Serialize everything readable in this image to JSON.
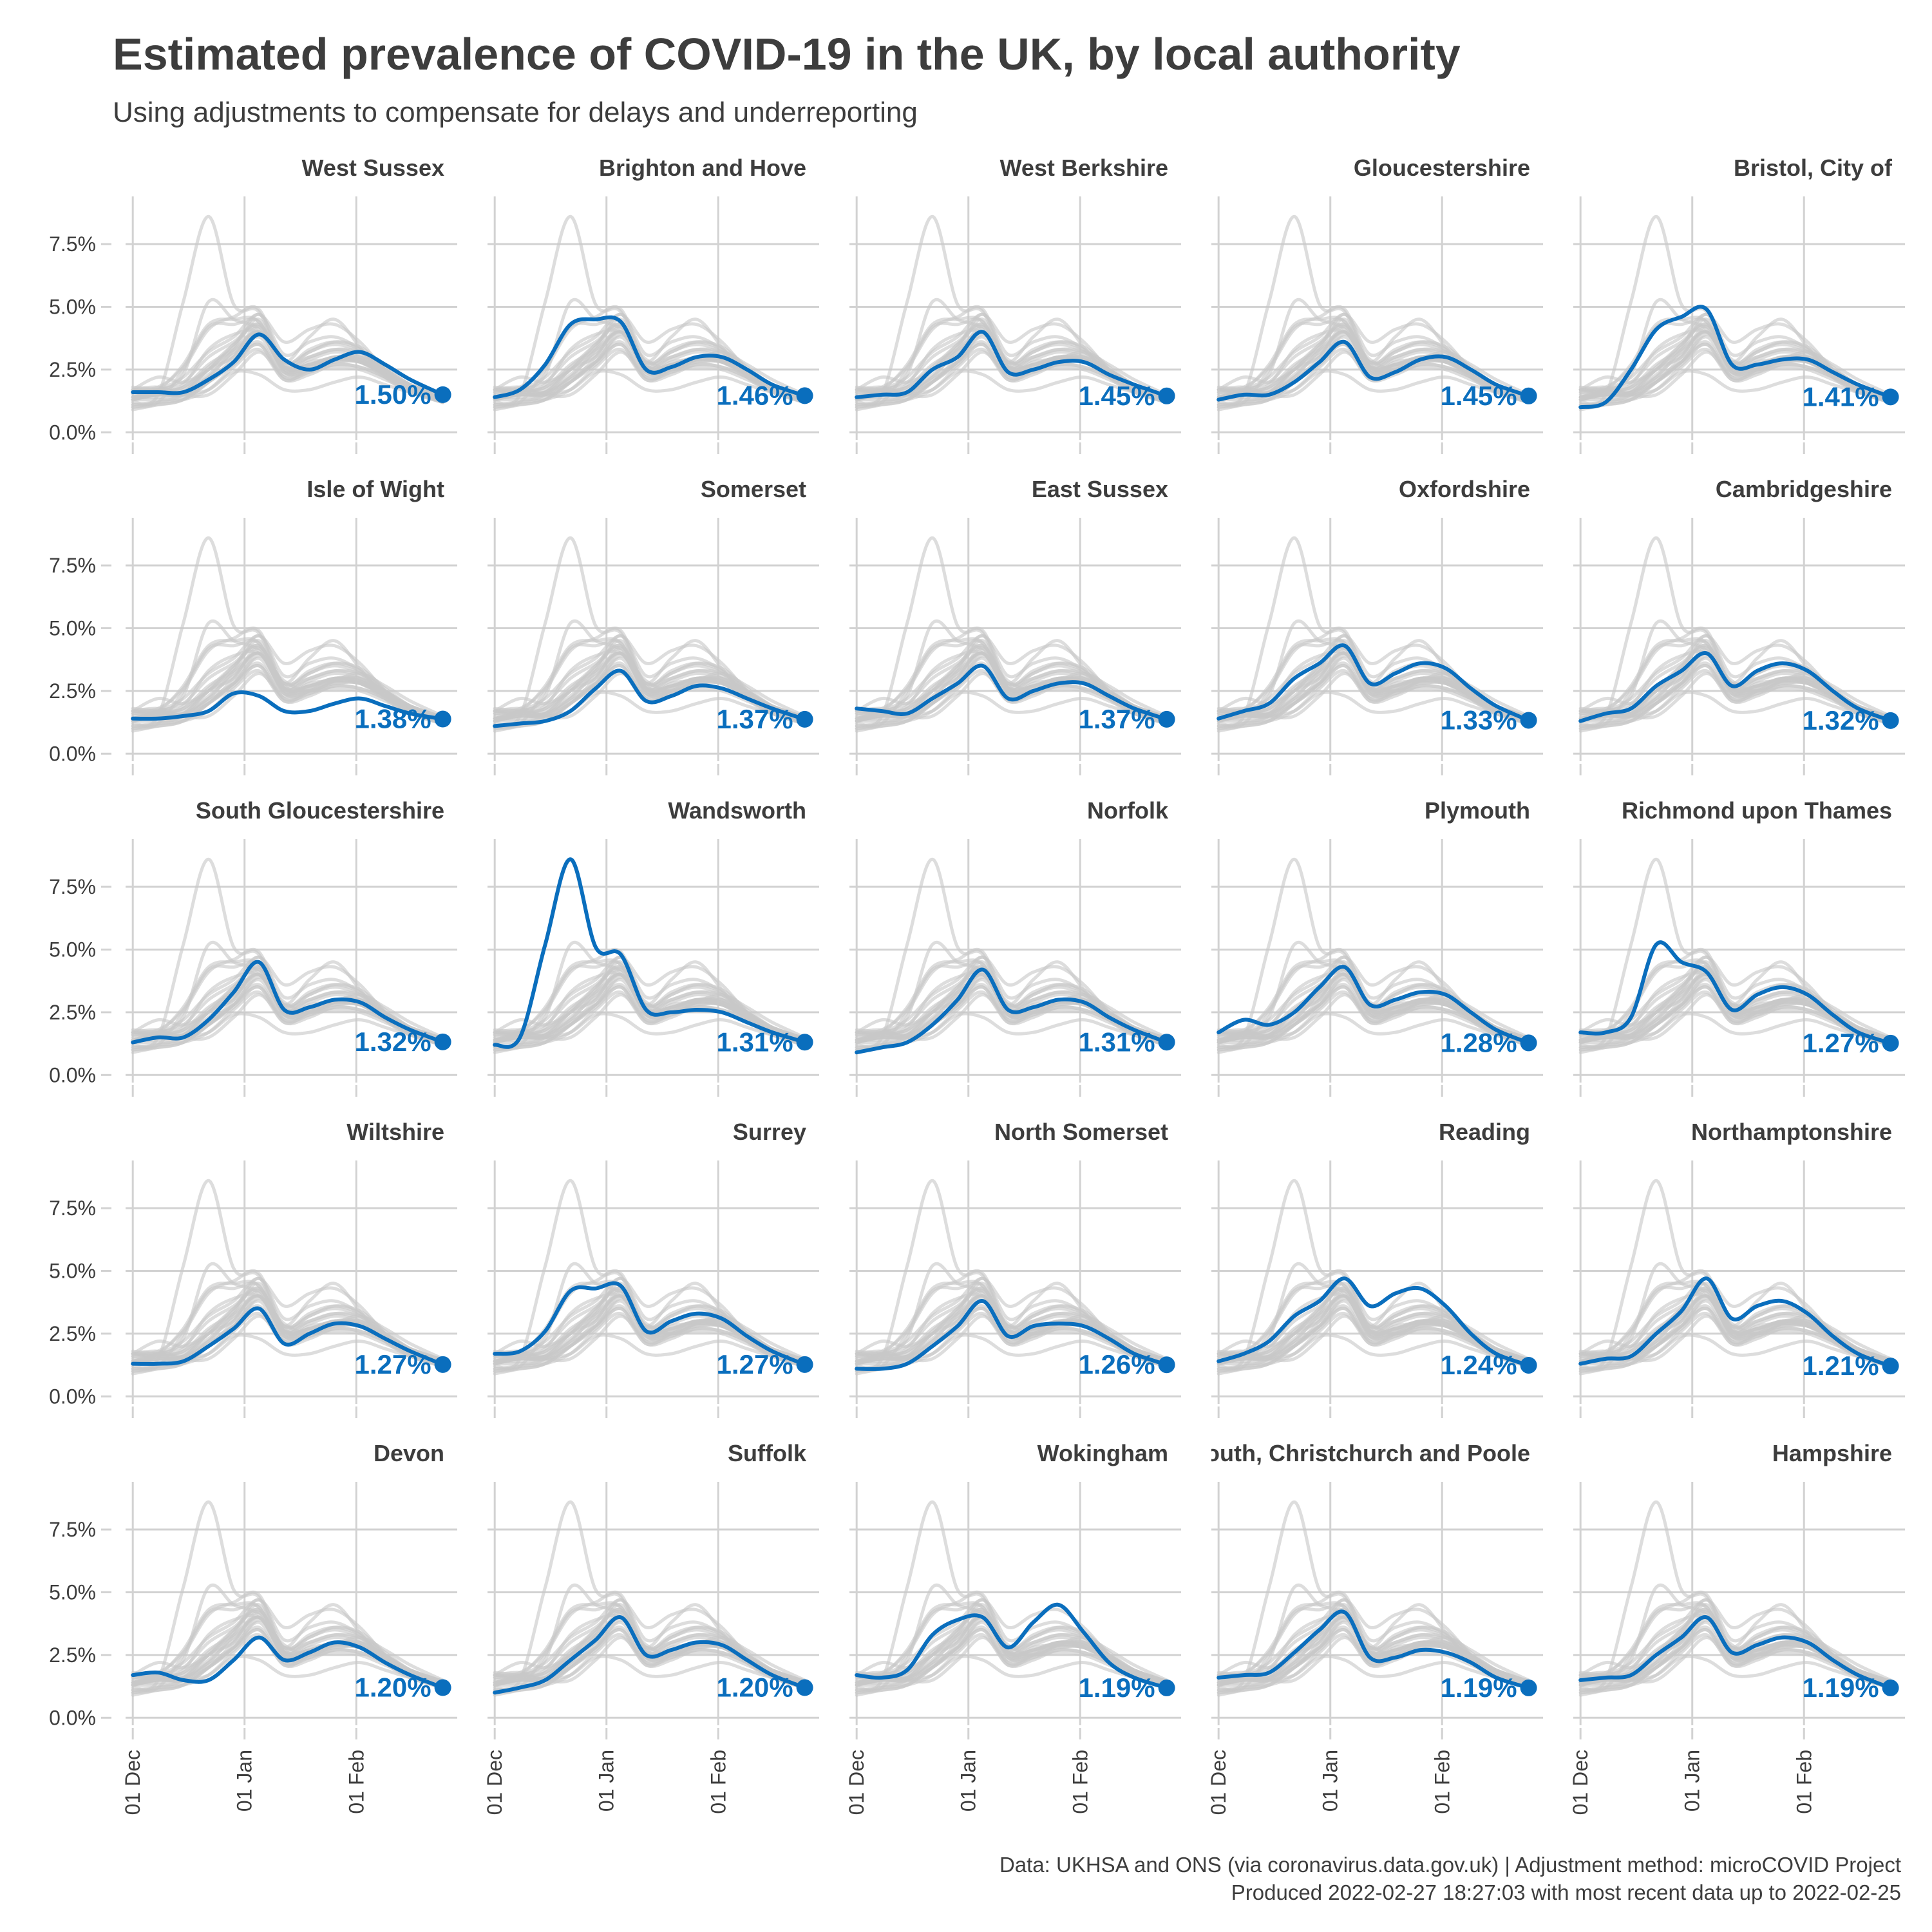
{
  "header": {
    "title": "Estimated prevalence of COVID-19 in the UK, by local authority",
    "subtitle": "Using adjustments to compensate for delays and underreporting"
  },
  "footer": {
    "caption_line1": "Data: UKHSA and ONS (via coronavirus.data.gov.uk) | Adjustment method: microCOVID Project",
    "caption_line2": "Produced 2022-02-27 18:27:03 with most recent data up to 2022-02-25"
  },
  "colors": {
    "highlight": "#0a6ebd",
    "background_lines": "#c8c8c8",
    "grid": "#d2d2d2",
    "text": "#3d3d3d"
  },
  "chart_data": {
    "type": "line",
    "layout": "small multiples, 5 columns x 5 rows",
    "y_axis": {
      "ticks": [
        "0.0%",
        "2.5%",
        "5.0%",
        "7.5%"
      ],
      "tick_values": [
        0,
        2.5,
        5.0,
        7.5
      ],
      "ylim": [
        -0.3,
        9.4
      ]
    },
    "x_axis": {
      "ticks": [
        "01 Dec",
        "01 Jan",
        "01 Feb"
      ],
      "tick_dates": [
        "2021-12-01",
        "2022-01-01",
        "2022-02-01"
      ],
      "xlim": [
        "2021-11-29",
        "2022-03-01"
      ]
    },
    "x_dates": [
      "2021-12-01",
      "2021-12-08",
      "2021-12-15",
      "2021-12-22",
      "2021-12-29",
      "2022-01-05",
      "2022-01-12",
      "2022-01-19",
      "2022-01-26",
      "2022-02-02",
      "2022-02-09",
      "2022-02-16",
      "2022-02-25"
    ],
    "grid": true,
    "legend": "none",
    "panels": [
      {
        "name": "West Sussex",
        "label": "1.50%",
        "values": [
          1.6,
          1.6,
          1.6,
          2.1,
          2.8,
          3.9,
          2.9,
          2.5,
          2.9,
          3.2,
          2.7,
          2.1,
          1.5
        ]
      },
      {
        "name": "Brighton and Hove",
        "label": "1.46%",
        "values": [
          1.4,
          1.7,
          2.7,
          4.3,
          4.5,
          4.4,
          2.5,
          2.6,
          3.0,
          3.0,
          2.5,
          1.9,
          1.46
        ]
      },
      {
        "name": "West Berkshire",
        "label": "1.45%",
        "values": [
          1.4,
          1.5,
          1.6,
          2.5,
          3.0,
          4.0,
          2.4,
          2.5,
          2.8,
          2.8,
          2.3,
          1.9,
          1.45
        ]
      },
      {
        "name": "Gloucestershire",
        "label": "1.45%",
        "values": [
          1.3,
          1.5,
          1.5,
          2.0,
          2.8,
          3.6,
          2.2,
          2.4,
          2.9,
          3.0,
          2.5,
          1.9,
          1.45
        ]
      },
      {
        "name": "Bristol, City of",
        "label": "1.41%",
        "values": [
          1.0,
          1.2,
          2.5,
          4.1,
          4.6,
          4.9,
          2.7,
          2.7,
          2.9,
          2.9,
          2.4,
          1.9,
          1.41
        ]
      },
      {
        "name": "Isle of Wight",
        "label": "1.38%",
        "values": [
          1.4,
          1.4,
          1.5,
          1.7,
          2.4,
          2.3,
          1.7,
          1.7,
          2.0,
          2.2,
          1.9,
          1.6,
          1.38
        ]
      },
      {
        "name": "Somerset",
        "label": "1.37%",
        "values": [
          1.1,
          1.2,
          1.3,
          1.7,
          2.6,
          3.3,
          2.1,
          2.3,
          2.7,
          2.6,
          2.2,
          1.8,
          1.37
        ]
      },
      {
        "name": "East Sussex",
        "label": "1.37%",
        "values": [
          1.8,
          1.7,
          1.6,
          2.2,
          2.8,
          3.5,
          2.2,
          2.5,
          2.8,
          2.8,
          2.3,
          1.8,
          1.37
        ]
      },
      {
        "name": "Oxfordshire",
        "label": "1.33%",
        "values": [
          1.4,
          1.7,
          2.0,
          3.0,
          3.6,
          4.3,
          2.8,
          3.2,
          3.6,
          3.4,
          2.6,
          1.9,
          1.33
        ]
      },
      {
        "name": "Cambridgeshire",
        "label": "1.32%",
        "values": [
          1.3,
          1.6,
          1.8,
          2.7,
          3.3,
          4.0,
          2.7,
          3.3,
          3.6,
          3.3,
          2.5,
          1.8,
          1.32
        ]
      },
      {
        "name": "South Gloucestershire",
        "label": "1.32%",
        "values": [
          1.3,
          1.5,
          1.5,
          2.2,
          3.3,
          4.5,
          2.6,
          2.7,
          3.0,
          2.9,
          2.3,
          1.8,
          1.32
        ]
      },
      {
        "name": "Wandsworth",
        "label": "1.31%",
        "values": [
          1.2,
          1.5,
          5.2,
          8.6,
          5.1,
          4.8,
          2.6,
          2.5,
          2.6,
          2.5,
          2.1,
          1.7,
          1.31
        ]
      },
      {
        "name": "Norfolk",
        "label": "1.31%",
        "values": [
          0.9,
          1.1,
          1.3,
          2.0,
          3.0,
          4.2,
          2.6,
          2.7,
          3.0,
          2.9,
          2.3,
          1.8,
          1.31
        ]
      },
      {
        "name": "Plymouth",
        "label": "1.28%",
        "values": [
          1.7,
          2.2,
          2.0,
          2.5,
          3.5,
          4.3,
          2.8,
          3.0,
          3.3,
          3.2,
          2.5,
          1.8,
          1.28
        ]
      },
      {
        "name": "Richmond upon Thames",
        "label": "1.27%",
        "values": [
          1.7,
          1.7,
          2.3,
          5.2,
          4.5,
          4.1,
          2.6,
          3.2,
          3.5,
          3.2,
          2.4,
          1.7,
          1.27
        ]
      },
      {
        "name": "Wiltshire",
        "label": "1.27%",
        "values": [
          1.3,
          1.3,
          1.4,
          2.0,
          2.7,
          3.5,
          2.1,
          2.5,
          2.9,
          2.8,
          2.3,
          1.8,
          1.27
        ]
      },
      {
        "name": "Surrey",
        "label": "1.27%",
        "values": [
          1.7,
          1.8,
          2.6,
          4.2,
          4.3,
          4.4,
          2.6,
          3.0,
          3.3,
          3.1,
          2.4,
          1.8,
          1.27
        ]
      },
      {
        "name": "North Somerset",
        "label": "1.26%",
        "values": [
          1.1,
          1.1,
          1.3,
          2.0,
          2.8,
          3.8,
          2.4,
          2.8,
          2.9,
          2.8,
          2.3,
          1.7,
          1.26
        ]
      },
      {
        "name": "Reading",
        "label": "1.24%",
        "values": [
          1.4,
          1.7,
          2.2,
          3.2,
          3.8,
          4.7,
          3.6,
          4.1,
          4.3,
          3.6,
          2.5,
          1.7,
          1.24
        ]
      },
      {
        "name": "Northamptonshire",
        "label": "1.21%",
        "values": [
          1.3,
          1.5,
          1.6,
          2.5,
          3.4,
          4.7,
          3.1,
          3.6,
          3.8,
          3.3,
          2.4,
          1.7,
          1.21
        ]
      },
      {
        "name": "Devon",
        "label": "1.20%",
        "values": [
          1.7,
          1.8,
          1.5,
          1.5,
          2.3,
          3.2,
          2.3,
          2.6,
          3.0,
          2.8,
          2.2,
          1.7,
          1.2
        ]
      },
      {
        "name": "Suffolk",
        "label": "1.20%",
        "values": [
          1.0,
          1.2,
          1.5,
          2.3,
          3.1,
          4.0,
          2.5,
          2.7,
          3.0,
          2.9,
          2.3,
          1.7,
          1.2
        ]
      },
      {
        "name": "Wokingham",
        "label": "1.19%",
        "values": [
          1.7,
          1.6,
          1.9,
          3.3,
          3.9,
          4.0,
          2.8,
          3.8,
          4.5,
          3.4,
          2.2,
          1.6,
          1.19
        ]
      },
      {
        "name": "Bournemouth, Christchurch and Poole",
        "label": "1.19%",
        "values": [
          1.6,
          1.7,
          1.8,
          2.6,
          3.5,
          4.2,
          2.4,
          2.4,
          2.7,
          2.6,
          2.2,
          1.6,
          1.19
        ]
      },
      {
        "name": "Hampshire",
        "label": "1.19%",
        "values": [
          1.5,
          1.6,
          1.7,
          2.5,
          3.2,
          4.0,
          2.6,
          2.9,
          3.2,
          3.0,
          2.3,
          1.7,
          1.19
        ]
      }
    ]
  }
}
